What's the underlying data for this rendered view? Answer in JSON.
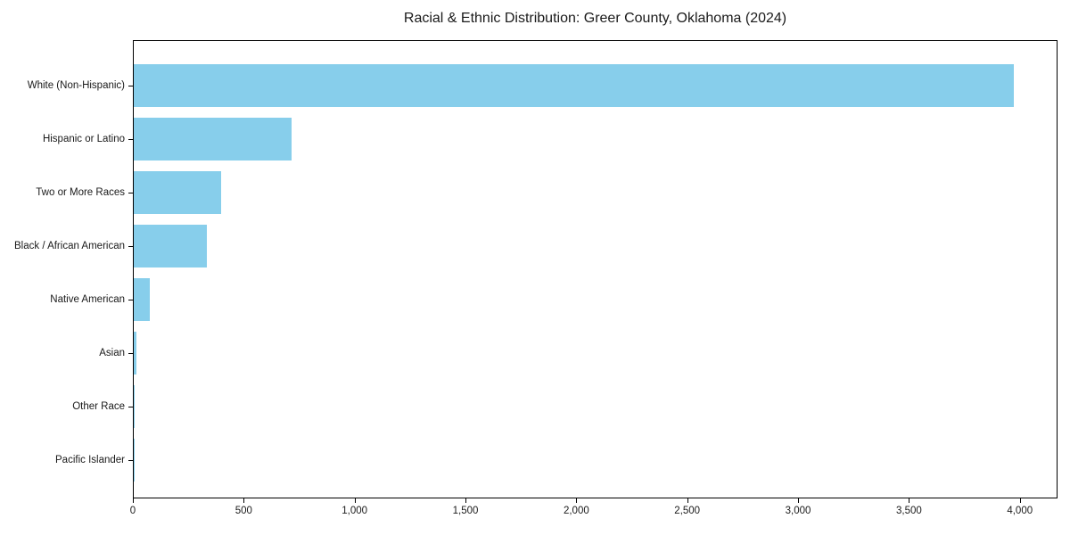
{
  "chart_data": {
    "type": "bar",
    "orientation": "horizontal",
    "title": "Racial & Ethnic Distribution: Greer County, Oklahoma (2024)",
    "categories": [
      "White (Non-Hispanic)",
      "Hispanic or Latino",
      "Two or More Races",
      "Black / African American",
      "Native American",
      "Asian",
      "Other Race",
      "Pacific Islander"
    ],
    "values": [
      3970,
      710,
      395,
      330,
      72,
      12,
      4,
      1
    ],
    "xlabel": "",
    "ylabel": "",
    "xlim": [
      0,
      4170
    ],
    "xticks": [
      0,
      500,
      1000,
      1500,
      2000,
      2500,
      3000,
      3500,
      4000
    ],
    "xtick_labels": [
      "0",
      "500",
      "1,000",
      "1,500",
      "2,000",
      "2,500",
      "3,000",
      "3,500",
      "4,000"
    ],
    "grid": false,
    "legend_position": "none",
    "bar_color": "#87CEEB"
  },
  "colors": {
    "bar": "#87CEEB",
    "axis": "#000000",
    "text": "#1a1a1a",
    "background": "#ffffff"
  }
}
